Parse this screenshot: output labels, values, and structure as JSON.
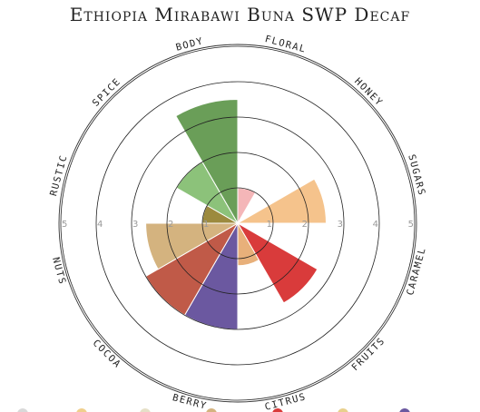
{
  "chart_data": {
    "type": "polar_area",
    "title": "Ethiopia Mirabawi Buna SWP Decaf",
    "r_ticks": [
      "1",
      "2",
      "3",
      "4",
      "5"
    ],
    "rlim": [
      0,
      5
    ],
    "grid": true,
    "categories": [
      "FLORAL",
      "HONEY",
      "SUGARS",
      "CARAMEL",
      "FRUITS",
      "CITRUS",
      "BERRY",
      "COCOA",
      "NUTS",
      "RUSTIC",
      "SPICE",
      "BODY"
    ],
    "values": [
      1.0,
      0.0,
      2.5,
      0.0,
      2.6,
      1.2,
      3.0,
      3.0,
      2.6,
      1.0,
      2.0,
      3.5
    ],
    "colors": [
      "#f4b6b8",
      "#f0cf8c",
      "#f5c38c",
      "#e8a46a",
      "#d93b3b",
      "#e8b07a",
      "#6b58a0",
      "#c05a48",
      "#d4b37f",
      "#9c8a3e",
      "#8cc27a",
      "#6a9e58"
    ]
  }
}
